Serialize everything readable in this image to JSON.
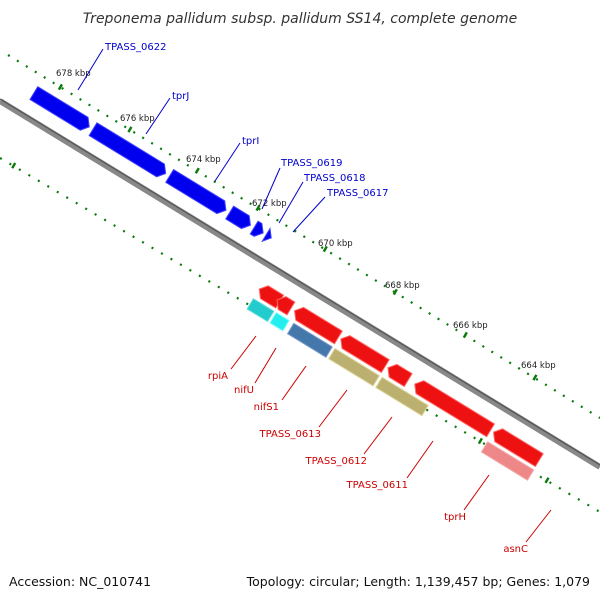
{
  "title": "Treponema pallidum subsp. pallidum SS14, complete genome",
  "accession": "Accession: NC_010741",
  "summary": "Topology: circular; Length: 1,139,457 bp; Genes: 1,079",
  "scale_labels": [
    "678 kbp",
    "676 kbp",
    "674 kbp",
    "672 kbp",
    "670 kbp",
    "668 kbp",
    "666 kbp",
    "664 kbp"
  ],
  "forward_genes": [
    "TPASS_0622",
    "tprJ",
    "tprI",
    "TPASS_0619",
    "TPASS_0618",
    "TPASS_0617"
  ],
  "reverse_genes": [
    "rpiA",
    "nifU",
    "nifS1",
    "TPASS_0613",
    "TPASS_0612",
    "TPASS_0611",
    "tprH",
    "asnC"
  ],
  "colors": {
    "forward_label": "#0000cc",
    "reverse_label": "#cc0000",
    "forward_feature": "#0000ee",
    "reverse_feature": "#ee1111",
    "cog_cyan": "#22cccc",
    "cog_steel": "#4477aa",
    "cog_khaki": "#bbb070",
    "cog_salmon": "#ee8888",
    "cog_olive": "#778822",
    "tick_green": "#0a7a0a",
    "backbone": "#777777"
  }
}
